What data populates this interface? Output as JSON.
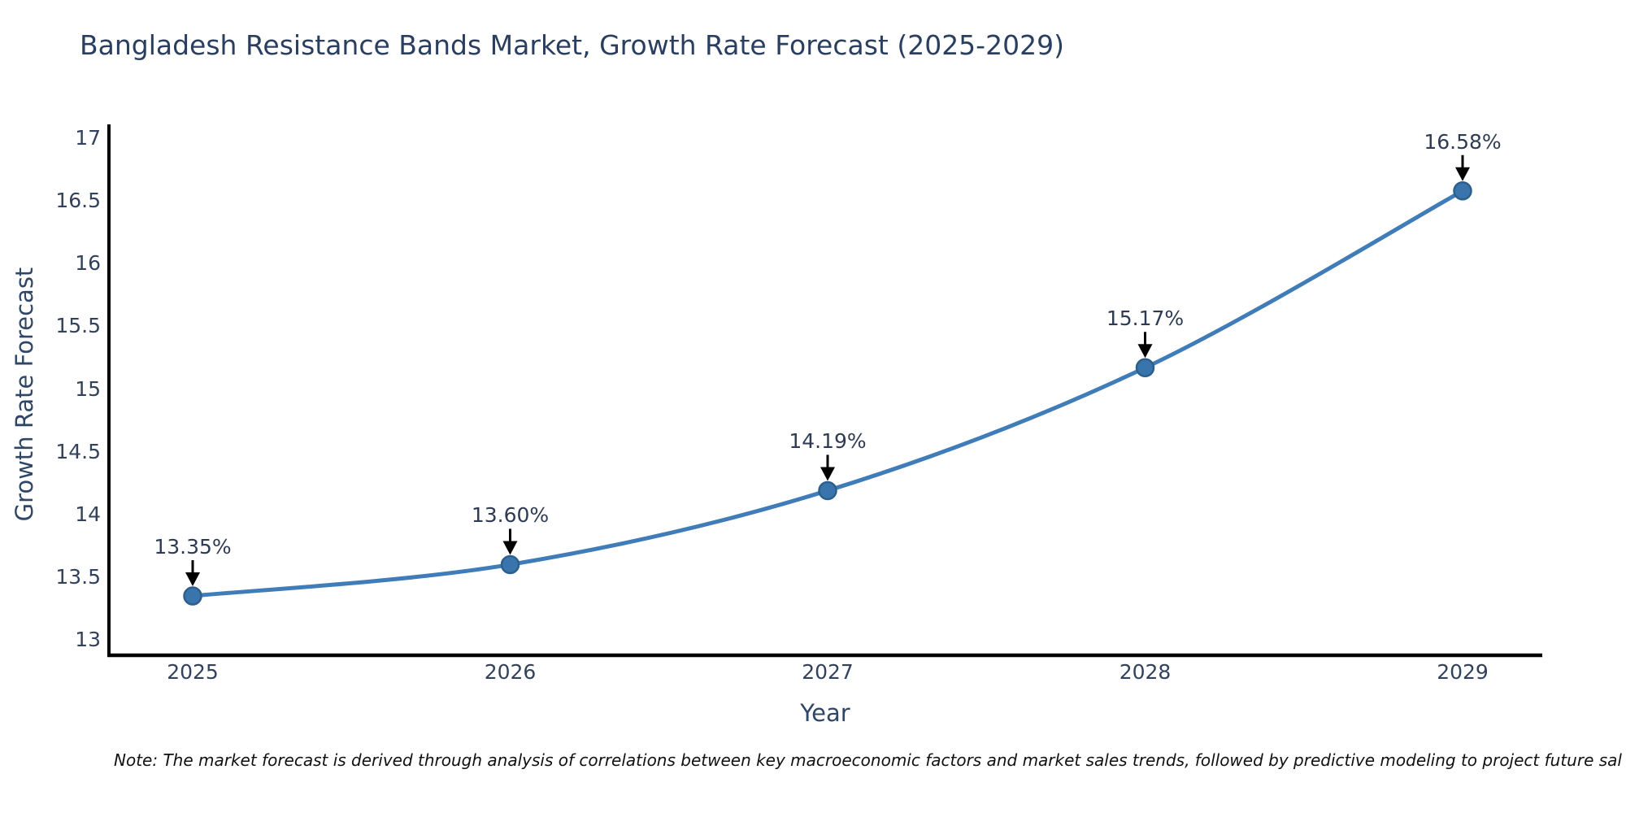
{
  "note": "Note: The market forecast is derived through analysis of correlations between key macroeconomic factors and market sales trends, followed by predictive modeling to project future sal",
  "chart_data": {
    "type": "line",
    "title": "Bangladesh Resistance Bands Market, Growth Rate Forecast (2025-2029)",
    "xlabel": "Year",
    "ylabel": "Growth Rate Forecast",
    "x": [
      2025,
      2026,
      2027,
      2028,
      2029
    ],
    "values": [
      13.35,
      13.6,
      14.19,
      15.17,
      16.58
    ],
    "point_labels": [
      "13.35%",
      "13.60%",
      "14.19%",
      "15.17%",
      "16.58%"
    ],
    "x_tick_labels": [
      "2025",
      "2026",
      "2027",
      "2028",
      "2029"
    ],
    "y_ticks": [
      13,
      13.5,
      14,
      14.5,
      15,
      15.5,
      16,
      16.5,
      17
    ],
    "y_tick_labels": [
      "13",
      "13.5",
      "14",
      "14.5",
      "15",
      "15.5",
      "16",
      "16.5",
      "17"
    ],
    "ylim": [
      12.88,
      17.11
    ],
    "xlim": [
      2024.74,
      2029.25
    ],
    "grid": false,
    "legend": "none",
    "marker_shape": "circle",
    "annotation_arrow": "down",
    "colors": {
      "line": "#3f7cb8",
      "marker_fill": "#3a74ad",
      "marker_edge": "#2d5f8d",
      "arrow": "#000000",
      "axis_line": "#000000",
      "chart_text": "#2f4666",
      "note_text": "#111111",
      "background": "#ffffff"
    }
  }
}
